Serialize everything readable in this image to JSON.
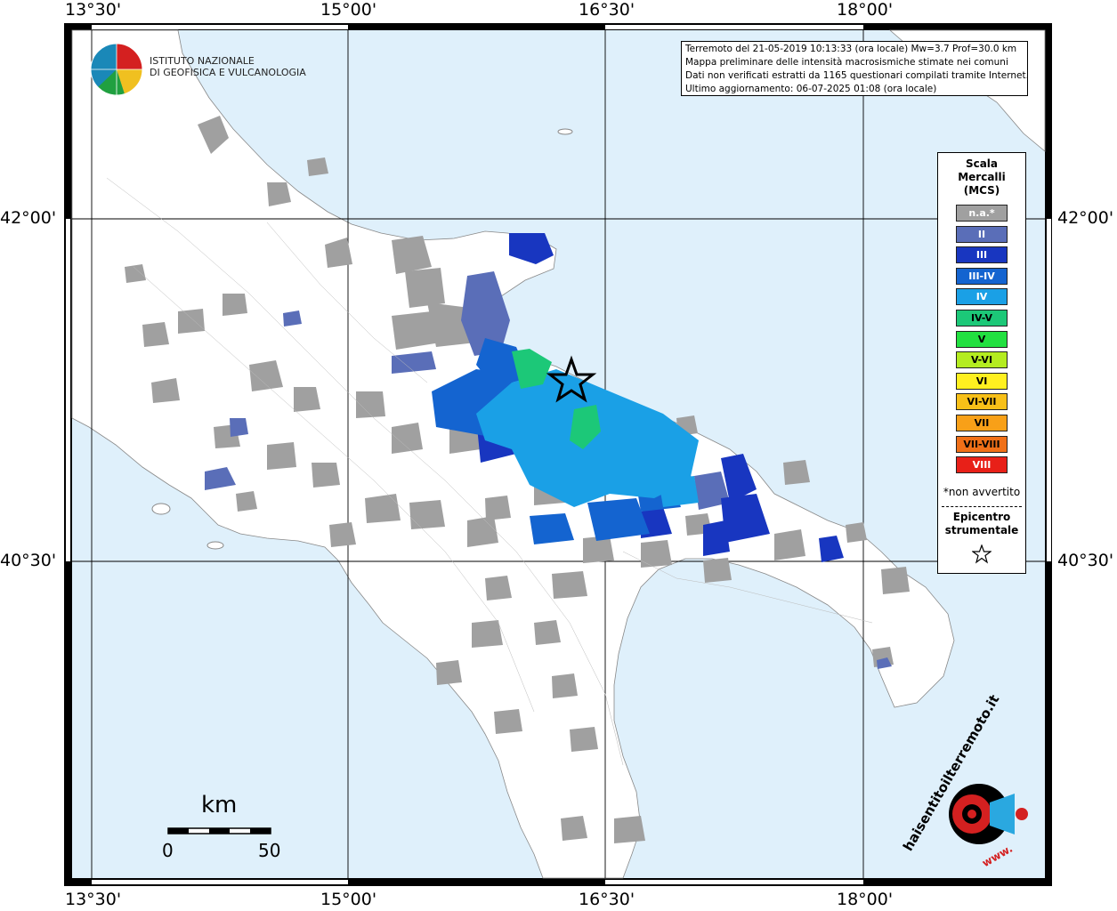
{
  "title_box": {
    "line1": "Terremoto del 21-05-2019 10:13:33 (ora locale) Mw=3.7 Prof=30.0 km",
    "line2": "Mappa preliminare delle intensità macrosismiche stimate nei comuni",
    "line3": "Dati non verificati estratti da 1165 questionari compilati tramite Internet.",
    "line4": "Ultimo aggiornamento: 06-07-2025 01:08 (ora locale)"
  },
  "logo": {
    "line1": "ISTITUTO NAZIONALE",
    "line2": "DI GEOFISICA E VULCANOLOGIA"
  },
  "axes": {
    "lon_labels": [
      "13°30'",
      "15°00'",
      "16°30'",
      "18°00'"
    ],
    "lat_labels": [
      "42°00'",
      "40°30'"
    ]
  },
  "legend": {
    "title_line1": "Scala",
    "title_line2": "Mercalli",
    "title_line3": "(MCS)",
    "items": [
      {
        "label": "n.a.*",
        "color": "#a0a0a0",
        "text_color": "#ffffff"
      },
      {
        "label": "II",
        "color": "#5a6eb8",
        "text_color": "#ffffff"
      },
      {
        "label": "III",
        "color": "#1836c0",
        "text_color": "#ffffff"
      },
      {
        "label": "III-IV",
        "color": "#1464d0",
        "text_color": "#ffffff"
      },
      {
        "label": "IV",
        "color": "#1aa0e6",
        "text_color": "#ffffff"
      },
      {
        "label": "IV-V",
        "color": "#1cc878",
        "text_color": "#000000"
      },
      {
        "label": "V",
        "color": "#22e040",
        "text_color": "#000000"
      },
      {
        "label": "V-VI",
        "color": "#b4ec20",
        "text_color": "#000000"
      },
      {
        "label": "VI",
        "color": "#fff020",
        "text_color": "#000000"
      },
      {
        "label": "VI-VII",
        "color": "#f8c018",
        "text_color": "#000000"
      },
      {
        "label": "VII",
        "color": "#f8a018",
        "text_color": "#000000"
      },
      {
        "label": "VII-VIII",
        "color": "#f07018",
        "text_color": "#000000"
      },
      {
        "label": "VIII",
        "color": "#e82018",
        "text_color": "#ffffff"
      }
    ],
    "note": "*non avvertito",
    "epicentre_line1": "Epicentro",
    "epicentre_line2": "strumentale"
  },
  "scalebar": {
    "unit": "km",
    "start": "0",
    "end": "50"
  },
  "brand": {
    "text": "haisentitoilterremoto.it",
    "url": "www."
  },
  "colors": {
    "sea": "#dff0fb",
    "land": "#ffffff",
    "na": "#a0a0a0",
    "ii": "#5a6eb8",
    "iii": "#1836c0",
    "iiiiv": "#1464d0",
    "iv": "#1aa0e6",
    "ivv": "#1cc878"
  }
}
